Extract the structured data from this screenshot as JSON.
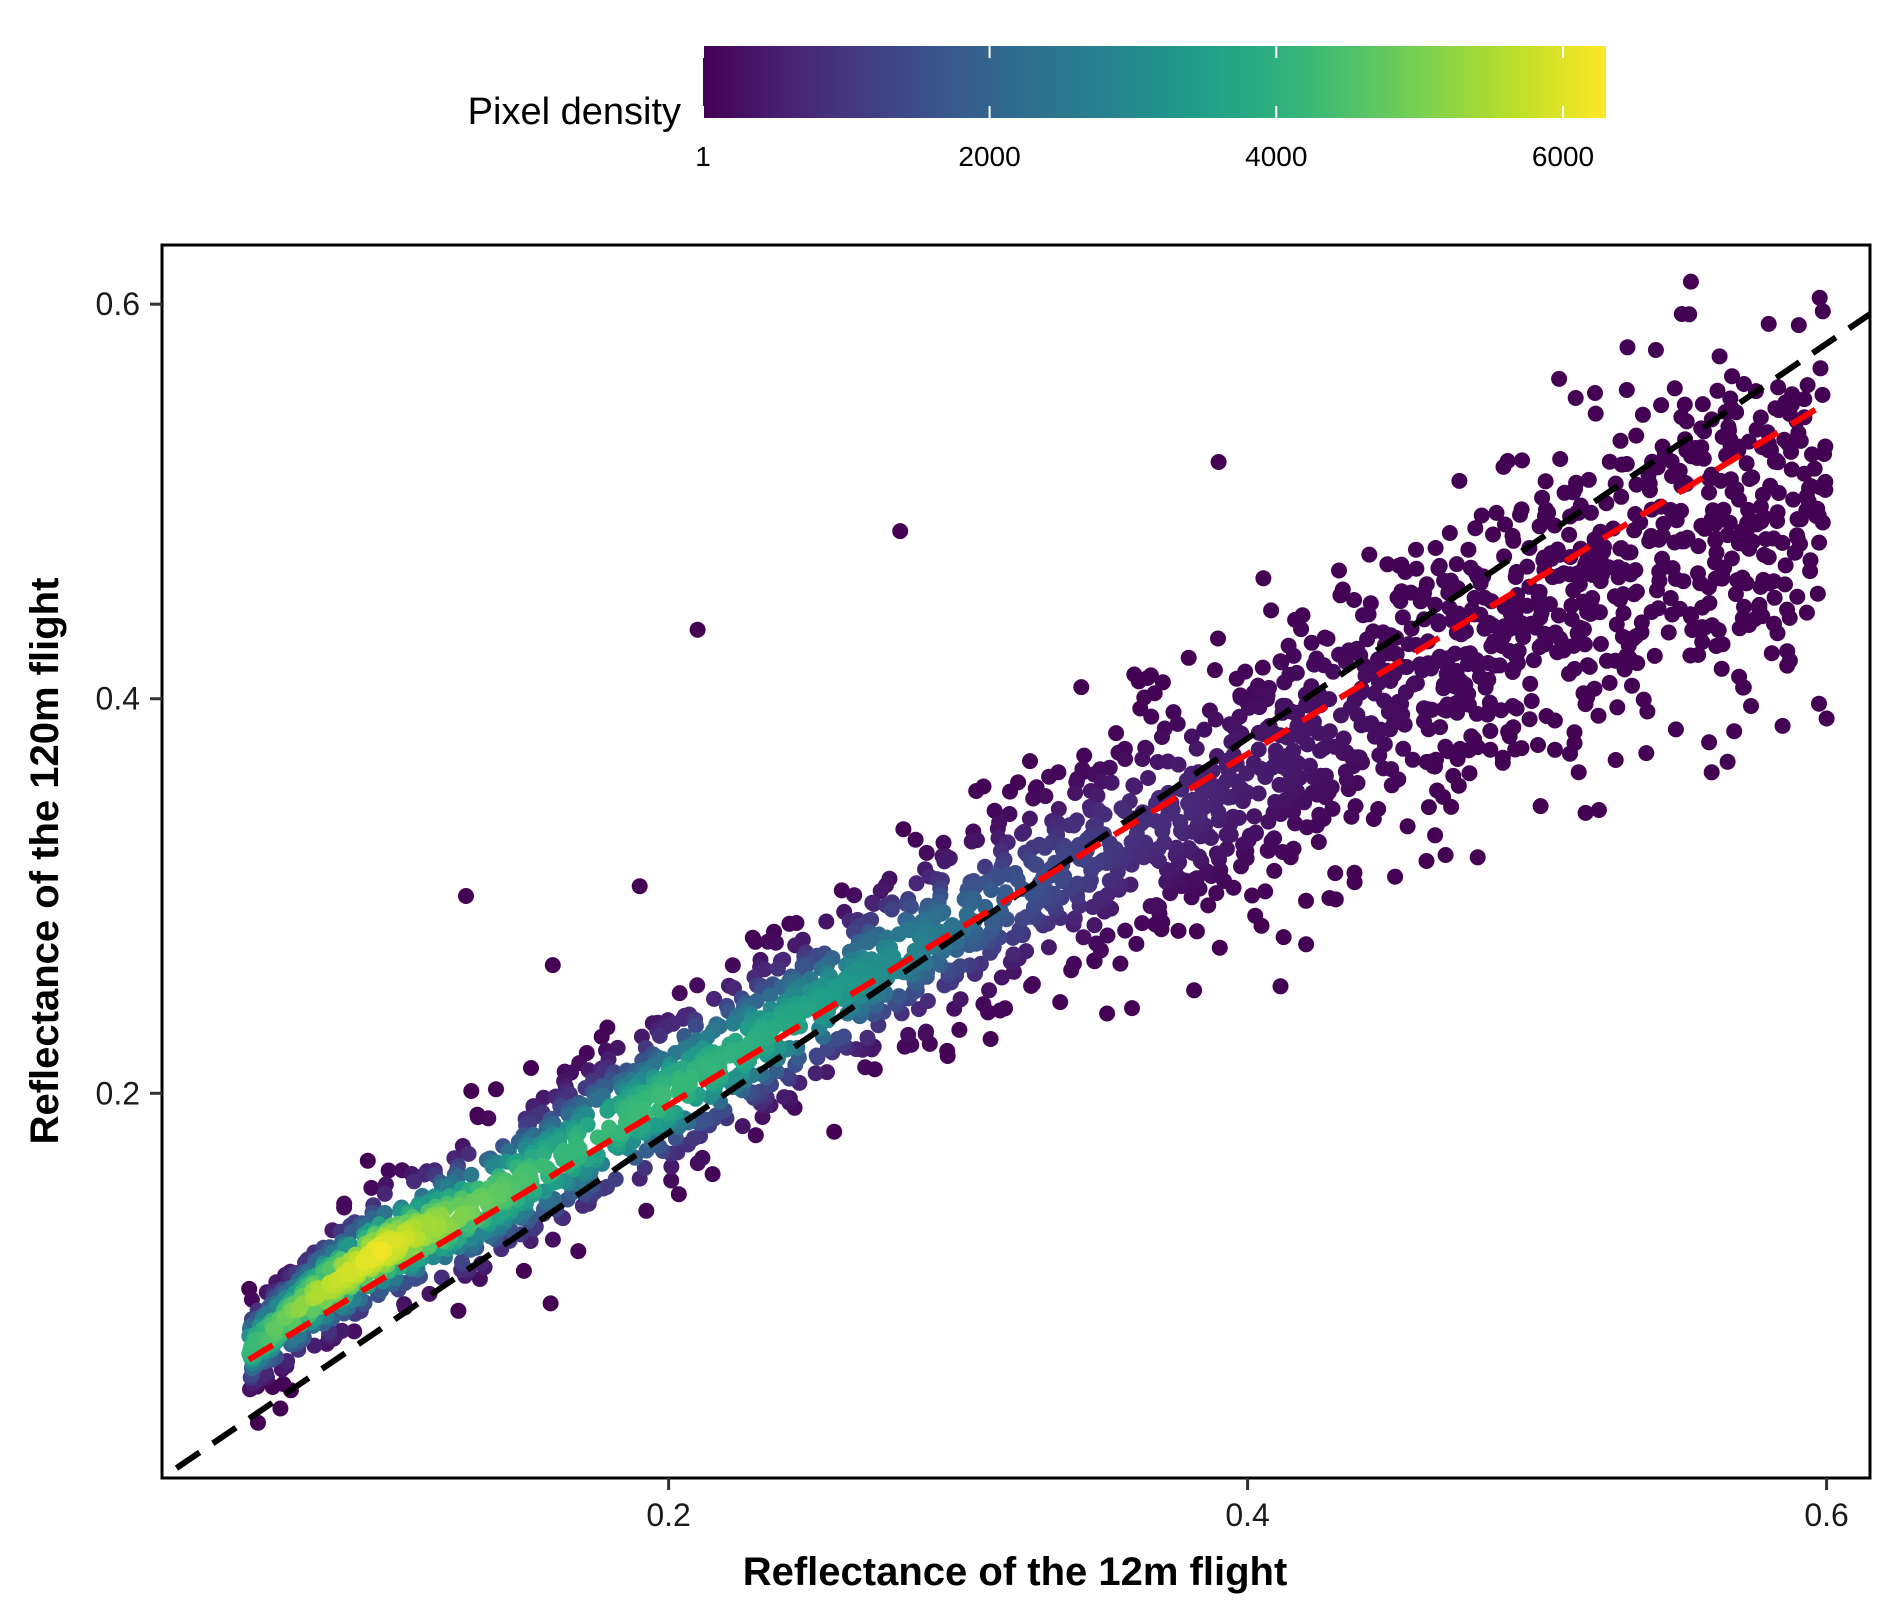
{
  "chart_data": {
    "type": "scatter",
    "xlabel": "Reflectance of the 12m flight",
    "ylabel": "Reflectance of the 120m flight",
    "xlim": [
      0.025,
      0.615
    ],
    "ylim": [
      0.005,
      0.63
    ],
    "x_ticks": [
      0.2,
      0.4,
      0.6
    ],
    "y_ticks": [
      0.2,
      0.4,
      0.6
    ],
    "x_tick_labels": [
      "0.2",
      "0.4",
      "0.6"
    ],
    "y_tick_labels": [
      "0.2",
      "0.4",
      "0.6"
    ],
    "grid": false,
    "legend": {
      "title": "Pixel density",
      "placement": "top",
      "colormap": "viridis",
      "range": [
        1,
        6300
      ],
      "ticks": [
        1,
        2000,
        4000,
        6000
      ],
      "tick_labels": [
        "1",
        "2000",
        "4000",
        "6000"
      ]
    },
    "lines": [
      {
        "style": "dashed",
        "color": "#000000",
        "x": [
          0.03,
          0.615
        ],
        "y": [
          0.01,
          0.595
        ]
      },
      {
        "style": "dashed",
        "color": "#ff0000",
        "x": [
          0.055,
          0.6
        ],
        "y": [
          0.065,
          0.55
        ]
      }
    ],
    "density_trend": [
      {
        "x": 0.055,
        "y": 0.07,
        "spread": 0.015,
        "density": 4200
      },
      {
        "x": 0.08,
        "y": 0.1,
        "spread": 0.02,
        "density": 5600
      },
      {
        "x": 0.1,
        "y": 0.12,
        "spread": 0.022,
        "density": 6200
      },
      {
        "x": 0.13,
        "y": 0.14,
        "spread": 0.025,
        "density": 5000
      },
      {
        "x": 0.16,
        "y": 0.165,
        "spread": 0.028,
        "density": 4200
      },
      {
        "x": 0.2,
        "y": 0.2,
        "spread": 0.03,
        "density": 4300
      },
      {
        "x": 0.24,
        "y": 0.235,
        "spread": 0.03,
        "density": 3800
      },
      {
        "x": 0.28,
        "y": 0.27,
        "spread": 0.032,
        "density": 3000
      },
      {
        "x": 0.32,
        "y": 0.3,
        "spread": 0.035,
        "density": 1700
      },
      {
        "x": 0.36,
        "y": 0.33,
        "spread": 0.04,
        "density": 900
      },
      {
        "x": 0.4,
        "y": 0.36,
        "spread": 0.045,
        "density": 500
      },
      {
        "x": 0.45,
        "y": 0.4,
        "spread": 0.05,
        "density": 200
      },
      {
        "x": 0.5,
        "y": 0.44,
        "spread": 0.055,
        "density": 60
      },
      {
        "x": 0.55,
        "y": 0.48,
        "spread": 0.06,
        "density": 10
      },
      {
        "x": 0.6,
        "y": 0.5,
        "spread": 0.065,
        "density": 1
      }
    ],
    "outliers": [
      {
        "x": 0.28,
        "y": 0.485
      },
      {
        "x": 0.21,
        "y": 0.435
      },
      {
        "x": 0.16,
        "y": 0.265
      },
      {
        "x": 0.13,
        "y": 0.3
      },
      {
        "x": 0.19,
        "y": 0.305
      },
      {
        "x": 0.15,
        "y": 0.11
      },
      {
        "x": 0.39,
        "y": 0.52
      },
      {
        "x": 0.52,
        "y": 0.555
      },
      {
        "x": 0.55,
        "y": 0.595
      },
      {
        "x": 0.58,
        "y": 0.59
      },
      {
        "x": 0.6,
        "y": 0.39
      }
    ]
  }
}
